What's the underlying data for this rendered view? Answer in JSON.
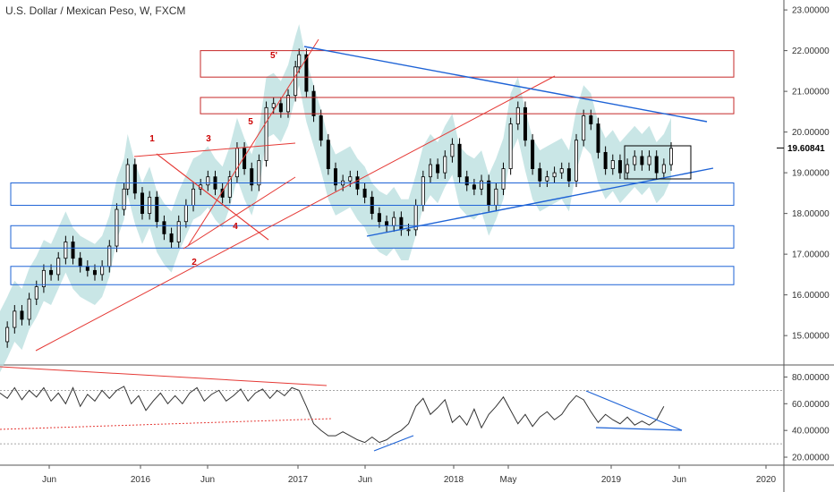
{
  "chart_title": "U.S. Dollar / Mexican Peso, W, FXCM",
  "last_price_label": "19.60841",
  "colors": {
    "candle": "#000000",
    "band": "#b7dede",
    "red_line": "#e53935",
    "red_box": "#c62828",
    "blue_line": "#1e63d6",
    "rsi_line": "#333333"
  },
  "chart_data": {
    "type": "line",
    "title": "U.S. Dollar / Mexican Peso, W, FXCM",
    "x_tick_labels": [
      "Jun",
      "2016",
      "Jun",
      "2017",
      "Jun",
      "2018",
      "May",
      "2019",
      "Jun",
      "2020"
    ],
    "price_axis": {
      "ticks": [
        "15.00000",
        "16.00000",
        "17.00000",
        "18.00000",
        "19.00000",
        "20.00000",
        "21.00000",
        "22.00000",
        "23.00000"
      ],
      "ylim": [
        14.3,
        23.2
      ]
    },
    "rsi_axis": {
      "ticks": [
        "20.00000",
        "40.00000",
        "60.00000",
        "80.00000"
      ],
      "ylim": [
        14,
        89
      ]
    },
    "last_price": 19.60841,
    "series": [
      {
        "values": [
          [
            0,
            14.85
          ],
          [
            4,
            15.2
          ],
          [
            8,
            15.6
          ],
          [
            12,
            15.4
          ],
          [
            16,
            15.9
          ],
          [
            20,
            16.2
          ],
          [
            24,
            16.6
          ],
          [
            28,
            16.5
          ],
          [
            32,
            16.9
          ],
          [
            36,
            17.3
          ],
          [
            40,
            16.9
          ],
          [
            44,
            16.7
          ],
          [
            48,
            16.6
          ],
          [
            52,
            16.5
          ],
          [
            56,
            16.7
          ],
          [
            60,
            17.2
          ],
          [
            64,
            18.1
          ],
          [
            68,
            18.6
          ],
          [
            70,
            19.2
          ],
          [
            74,
            18.5
          ],
          [
            78,
            18.0
          ],
          [
            82,
            18.4
          ],
          [
            86,
            17.8
          ],
          [
            90,
            17.5
          ],
          [
            94,
            17.3
          ],
          [
            98,
            17.8
          ],
          [
            102,
            18.2
          ],
          [
            106,
            18.6
          ],
          [
            110,
            18.7
          ],
          [
            114,
            18.9
          ],
          [
            118,
            18.6
          ],
          [
            122,
            18.4
          ],
          [
            126,
            18.9
          ],
          [
            130,
            19.6
          ],
          [
            134,
            19.1
          ],
          [
            138,
            18.7
          ],
          [
            142,
            19.3
          ],
          [
            146,
            20.6
          ],
          [
            150,
            20.7
          ],
          [
            154,
            20.5
          ],
          [
            158,
            20.9
          ],
          [
            162,
            21.6
          ],
          [
            164,
            21.9
          ],
          [
            168,
            21.0
          ],
          [
            172,
            20.4
          ],
          [
            176,
            19.8
          ],
          [
            180,
            19.1
          ],
          [
            184,
            18.7
          ],
          [
            188,
            18.8
          ],
          [
            192,
            18.9
          ],
          [
            196,
            18.6
          ],
          [
            200,
            18.4
          ],
          [
            204,
            18.0
          ],
          [
            208,
            17.8
          ],
          [
            212,
            17.7
          ],
          [
            216,
            17.9
          ],
          [
            220,
            17.6
          ],
          [
            224,
            17.6
          ],
          [
            228,
            18.2
          ],
          [
            232,
            18.9
          ],
          [
            236,
            19.2
          ],
          [
            240,
            19.0
          ],
          [
            244,
            19.4
          ],
          [
            248,
            19.7
          ],
          [
            252,
            18.9
          ],
          [
            256,
            18.7
          ],
          [
            260,
            18.6
          ],
          [
            264,
            18.8
          ],
          [
            268,
            18.2
          ],
          [
            272,
            18.6
          ],
          [
            276,
            19.1
          ],
          [
            280,
            20.2
          ],
          [
            284,
            20.6
          ],
          [
            288,
            19.8
          ],
          [
            292,
            19.1
          ],
          [
            296,
            18.8
          ],
          [
            300,
            18.9
          ],
          [
            304,
            19.0
          ],
          [
            308,
            19.1
          ],
          [
            312,
            18.8
          ],
          [
            316,
            19.8
          ],
          [
            320,
            20.4
          ],
          [
            324,
            20.2
          ],
          [
            328,
            19.5
          ],
          [
            332,
            19.1
          ],
          [
            336,
            19.3
          ],
          [
            340,
            19.0
          ],
          [
            344,
            19.2
          ],
          [
            348,
            19.4
          ],
          [
            352,
            19.2
          ],
          [
            356,
            19.4
          ],
          [
            360,
            19.0
          ],
          [
            364,
            19.2
          ],
          [
            368,
            19.6
          ]
        ]
      }
    ],
    "rsi_series": [
      [
        0,
        68
      ],
      [
        4,
        64
      ],
      [
        8,
        72
      ],
      [
        12,
        63
      ],
      [
        16,
        70
      ],
      [
        20,
        65
      ],
      [
        24,
        72
      ],
      [
        28,
        62
      ],
      [
        32,
        68
      ],
      [
        36,
        60
      ],
      [
        40,
        72
      ],
      [
        44,
        58
      ],
      [
        48,
        67
      ],
      [
        52,
        62
      ],
      [
        56,
        70
      ],
      [
        60,
        64
      ],
      [
        64,
        70
      ],
      [
        68,
        73
      ],
      [
        72,
        60
      ],
      [
        76,
        66
      ],
      [
        80,
        55
      ],
      [
        84,
        62
      ],
      [
        88,
        68
      ],
      [
        92,
        60
      ],
      [
        96,
        66
      ],
      [
        100,
        60
      ],
      [
        104,
        68
      ],
      [
        108,
        72
      ],
      [
        112,
        62
      ],
      [
        116,
        67
      ],
      [
        120,
        70
      ],
      [
        124,
        62
      ],
      [
        128,
        66
      ],
      [
        132,
        71
      ],
      [
        136,
        62
      ],
      [
        140,
        68
      ],
      [
        144,
        71
      ],
      [
        148,
        64
      ],
      [
        152,
        70
      ],
      [
        156,
        66
      ],
      [
        160,
        72
      ],
      [
        164,
        70
      ],
      [
        168,
        58
      ],
      [
        172,
        45
      ],
      [
        176,
        40
      ],
      [
        180,
        36
      ],
      [
        184,
        36
      ],
      [
        188,
        39
      ],
      [
        192,
        36
      ],
      [
        196,
        33
      ],
      [
        200,
        31
      ],
      [
        204,
        35
      ],
      [
        208,
        31
      ],
      [
        212,
        33
      ],
      [
        216,
        37
      ],
      [
        220,
        40
      ],
      [
        224,
        45
      ],
      [
        228,
        58
      ],
      [
        232,
        64
      ],
      [
        236,
        52
      ],
      [
        240,
        57
      ],
      [
        244,
        63
      ],
      [
        248,
        46
      ],
      [
        252,
        51
      ],
      [
        256,
        44
      ],
      [
        260,
        56
      ],
      [
        264,
        42
      ],
      [
        268,
        52
      ],
      [
        272,
        58
      ],
      [
        276,
        65
      ],
      [
        280,
        55
      ],
      [
        284,
        45
      ],
      [
        288,
        52
      ],
      [
        292,
        43
      ],
      [
        296,
        50
      ],
      [
        300,
        54
      ],
      [
        304,
        48
      ],
      [
        308,
        52
      ],
      [
        312,
        60
      ],
      [
        316,
        66
      ],
      [
        320,
        63
      ],
      [
        324,
        54
      ],
      [
        328,
        46
      ],
      [
        332,
        52
      ],
      [
        336,
        48
      ],
      [
        340,
        45
      ],
      [
        344,
        50
      ],
      [
        348,
        44
      ],
      [
        352,
        47
      ],
      [
        356,
        44
      ],
      [
        360,
        48
      ],
      [
        364,
        58
      ]
    ],
    "wave_labels": [
      "1",
      "2",
      "3",
      "4",
      "5",
      "5'"
    ],
    "rsi_levels": [
      30,
      70
    ],
    "grid": false
  }
}
